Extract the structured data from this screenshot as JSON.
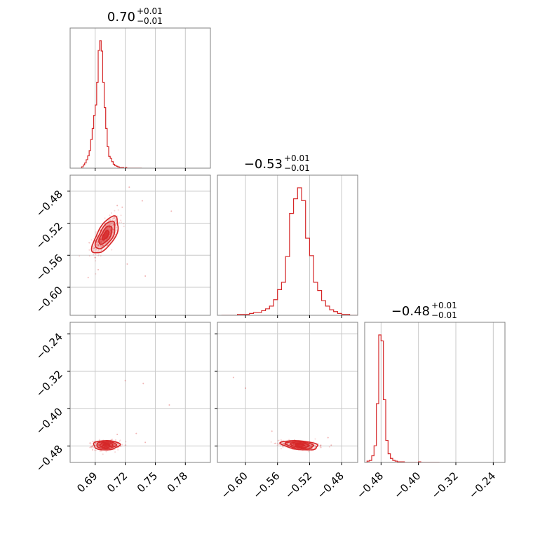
{
  "chart_data": {
    "type": "corner",
    "colors": {
      "series": "#d62728",
      "frame": "#808080",
      "grid": "#c8c8c8",
      "text": "#000000"
    },
    "grid": true,
    "parameters": [
      {
        "title_main": "0.70",
        "title_sup": "+0.01",
        "title_sub": "−0.01",
        "range": [
          0.665,
          0.805
        ],
        "ticks": [
          0.69,
          0.72,
          0.75,
          0.78
        ],
        "tick_labels": [
          "0.69",
          "0.72",
          "0.75",
          "0.78"
        ]
      },
      {
        "title_main": "−0.53",
        "title_sup": "+0.01",
        "title_sub": "−0.01",
        "range": [
          -0.635,
          -0.46
        ],
        "ticks": [
          -0.6,
          -0.56,
          -0.52,
          -0.48
        ],
        "tick_labels": [
          "−0.60",
          "−0.56",
          "−0.52",
          "−0.48"
        ]
      },
      {
        "title_main": "−0.48",
        "title_sup": "+0.01",
        "title_sub": "−0.01",
        "range": [
          -0.515,
          -0.215
        ],
        "ticks": [
          -0.48,
          -0.4,
          -0.32,
          -0.24
        ],
        "tick_labels": [
          "−0.48",
          "−0.40",
          "−0.32",
          "−0.24"
        ]
      }
    ],
    "histograms": [
      {
        "param": 0,
        "bins": [
          0.6765,
          0.678,
          0.6795,
          0.681,
          0.6825,
          0.684,
          0.6855,
          0.687,
          0.6885,
          0.69,
          0.6915,
          0.693,
          0.6945,
          0.696,
          0.6975,
          0.699,
          0.7005,
          0.702,
          0.7035,
          0.705,
          0.7065,
          0.708,
          0.7095,
          0.711,
          0.7125,
          0.714,
          0.7155,
          0.717,
          0.7185,
          0.72,
          0.7215,
          0.723,
          0.7245,
          0.726,
          0.7275,
          0.729,
          0.7305,
          0.732,
          0.7335,
          0.735
        ],
        "counts": [
          2,
          5,
          8,
          13,
          19,
          27,
          44,
          61,
          81,
          97,
          132,
          181,
          196,
          180,
          132,
          93,
          61,
          33,
          18,
          15,
          10,
          6,
          4,
          3,
          2,
          1,
          1,
          1,
          0,
          1,
          0,
          0,
          0,
          0,
          0,
          0,
          0,
          0,
          0,
          0
        ]
      },
      {
        "param": 1,
        "bins": [
          -0.63,
          -0.625,
          -0.62,
          -0.615,
          -0.61,
          -0.605,
          -0.6,
          -0.595,
          -0.59,
          -0.585,
          -0.58,
          -0.575,
          -0.57,
          -0.565,
          -0.56,
          -0.555,
          -0.55,
          -0.545,
          -0.54,
          -0.535,
          -0.53,
          -0.525,
          -0.52,
          -0.515,
          -0.51,
          -0.505,
          -0.5,
          -0.495,
          -0.49,
          -0.485,
          -0.48,
          -0.475,
          -0.47,
          -0.465
        ],
        "counts": [
          0,
          0,
          0,
          0,
          1,
          1,
          1,
          2,
          3,
          3,
          5,
          7,
          10,
          17,
          28,
          36,
          64,
          111,
          127,
          139,
          125,
          84,
          65,
          36,
          27,
          16,
          10,
          6,
          4,
          2,
          1,
          1,
          0,
          0
        ]
      },
      {
        "param": 2,
        "bins": [
          -0.51,
          -0.505,
          -0.5,
          -0.495,
          -0.49,
          -0.485,
          -0.48,
          -0.475,
          -0.47,
          -0.465,
          -0.46,
          -0.455,
          -0.45,
          -0.445,
          -0.44,
          -0.435,
          -0.43,
          -0.425,
          -0.42,
          -0.415,
          -0.41,
          -0.405,
          -0.4,
          -0.395,
          -0.39,
          -0.385,
          -0.38,
          -0.375,
          -0.37,
          -0.365,
          -0.36
        ],
        "counts": [
          2,
          3,
          10,
          25,
          88,
          191,
          182,
          94,
          33,
          13,
          6,
          3,
          2,
          1,
          1,
          1,
          0,
          0,
          0,
          0,
          0,
          0,
          1,
          0,
          0,
          0,
          0,
          0,
          0,
          0,
          0
        ]
      }
    ],
    "scatter_2d": [
      {
        "x_param": 0,
        "y_param": 1,
        "center": [
          0.7005,
          -0.535
        ],
        "sd": [
          0.0065,
          0.0115
        ],
        "correlation": 0.65,
        "contour_levels_sigma": [
          0.5,
          1.0,
          1.5,
          2.0
        ],
        "outliers": [
          [
            0.737,
            -0.492
          ],
          [
            0.724,
            -0.475
          ],
          [
            0.717,
            -0.5
          ],
          [
            0.683,
            -0.588
          ],
          [
            0.693,
            -0.578
          ],
          [
            0.722,
            -0.571
          ],
          [
            0.74,
            -0.586
          ],
          [
            0.766,
            -0.505
          ],
          [
            0.712,
            -0.498
          ],
          [
            0.69,
            -0.563
          ]
        ]
      },
      {
        "x_param": 0,
        "y_param": 2,
        "center": [
          0.701,
          -0.478
        ],
        "sd": [
          0.0065,
          0.005
        ],
        "correlation": 0.05,
        "contour_levels_sigma": [
          0.5,
          1.0,
          1.5,
          2.0
        ],
        "outliers": [
          [
            0.72,
            -0.34
          ],
          [
            0.738,
            -0.346
          ],
          [
            0.764,
            -0.392
          ],
          [
            0.731,
            -0.453
          ],
          [
            0.712,
            -0.455
          ],
          [
            0.74,
            -0.472
          ]
        ]
      },
      {
        "x_param": 1,
        "y_param": 2,
        "center": [
          -0.532,
          -0.478
        ],
        "sd": [
          0.0115,
          0.005
        ],
        "correlation": -0.35,
        "contour_levels_sigma": [
          0.5,
          1.0,
          1.5,
          2.0
        ],
        "outliers": [
          [
            -0.6,
            -0.356
          ],
          [
            -0.615,
            -0.333
          ],
          [
            -0.567,
            -0.448
          ],
          [
            -0.506,
            -0.478
          ],
          [
            -0.493,
            -0.478
          ],
          [
            -0.497,
            -0.462
          ]
        ]
      }
    ]
  }
}
